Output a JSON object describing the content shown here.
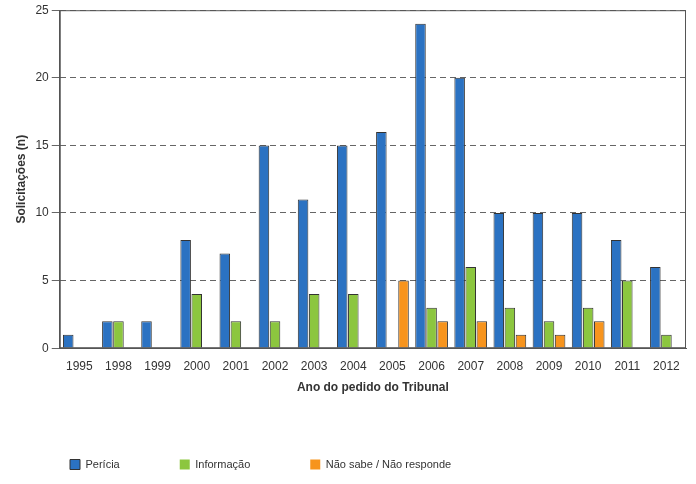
{
  "chart_data": {
    "type": "bar",
    "x_label": "Ano do pedido do Tribunal",
    "y_label": "Solicitações (n)",
    "categories": [
      "1995",
      "1998",
      "1999",
      "2000",
      "2001",
      "2002",
      "2003",
      "2004",
      "2005",
      "2006",
      "2007",
      "2008",
      "2009",
      "2010",
      "2011",
      "2012"
    ],
    "series": [
      {
        "name": "Perícia",
        "color": "#2b72c2",
        "values": [
          1,
          2,
          2,
          8,
          7,
          15,
          11,
          15,
          16,
          24,
          20,
          10,
          10,
          10,
          8,
          6
        ]
      },
      {
        "name": "Informação",
        "color": "#8cc63f",
        "values": [
          0,
          2,
          0,
          4,
          2,
          2,
          4,
          4,
          0,
          3,
          6,
          3,
          2,
          3,
          5,
          1
        ]
      },
      {
        "name": "Não sabe / Não responde",
        "color": "#f7941d",
        "values": [
          0,
          0,
          0,
          0,
          0,
          0,
          0,
          0,
          5,
          2,
          2,
          1,
          1,
          2,
          0,
          0
        ]
      }
    ],
    "ylim": [
      0,
      25
    ],
    "yticks": [
      0,
      5,
      10,
      15,
      20,
      25
    ],
    "grid": true,
    "legend": "bottom"
  }
}
